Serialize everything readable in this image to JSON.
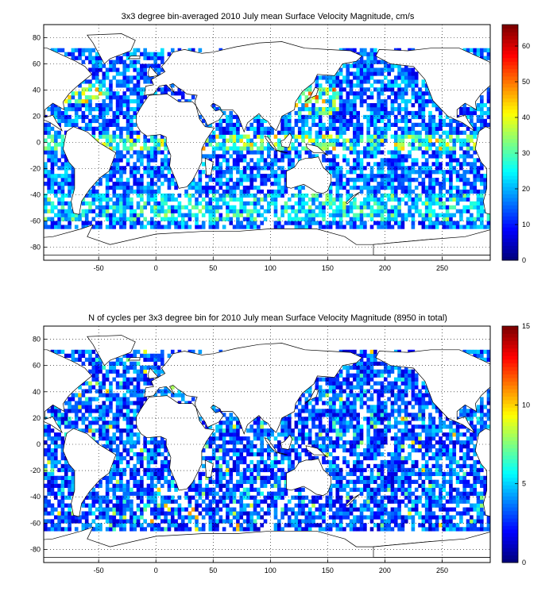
{
  "chart_data": [
    {
      "type": "heatmap",
      "title": "3x3 degree bin-averaged 2010 July mean Surface Velocity Magnitude, cm/s",
      "xlim": [
        -98,
        292
      ],
      "ylim": [
        -90,
        90
      ],
      "xticks": [
        -50,
        0,
        50,
        100,
        150,
        200,
        250
      ],
      "yticks": [
        -80,
        -60,
        -40,
        -20,
        0,
        20,
        40,
        60,
        80
      ],
      "bin_size_deg": 3,
      "colorbar": {
        "min": 0,
        "max": 66,
        "ticks": [
          0,
          10,
          20,
          30,
          40,
          50,
          60
        ],
        "colormap": "jet"
      },
      "grid": true
    },
    {
      "type": "heatmap",
      "title": "N of cycles per 3x3 degree bin for 2010 July mean Surface Velocity Magnitude (8950 in total)",
      "xlim": [
        -98,
        292
      ],
      "ylim": [
        -90,
        90
      ],
      "xticks": [
        -50,
        0,
        50,
        100,
        150,
        200,
        250
      ],
      "yticks": [
        -80,
        -60,
        -40,
        -20,
        0,
        20,
        40,
        60,
        80
      ],
      "bin_size_deg": 3,
      "total_cycles": 8950,
      "colorbar": {
        "min": 0,
        "max": 15,
        "ticks": [
          0,
          5,
          10,
          15
        ],
        "colormap": "jet"
      },
      "grid": true
    }
  ]
}
